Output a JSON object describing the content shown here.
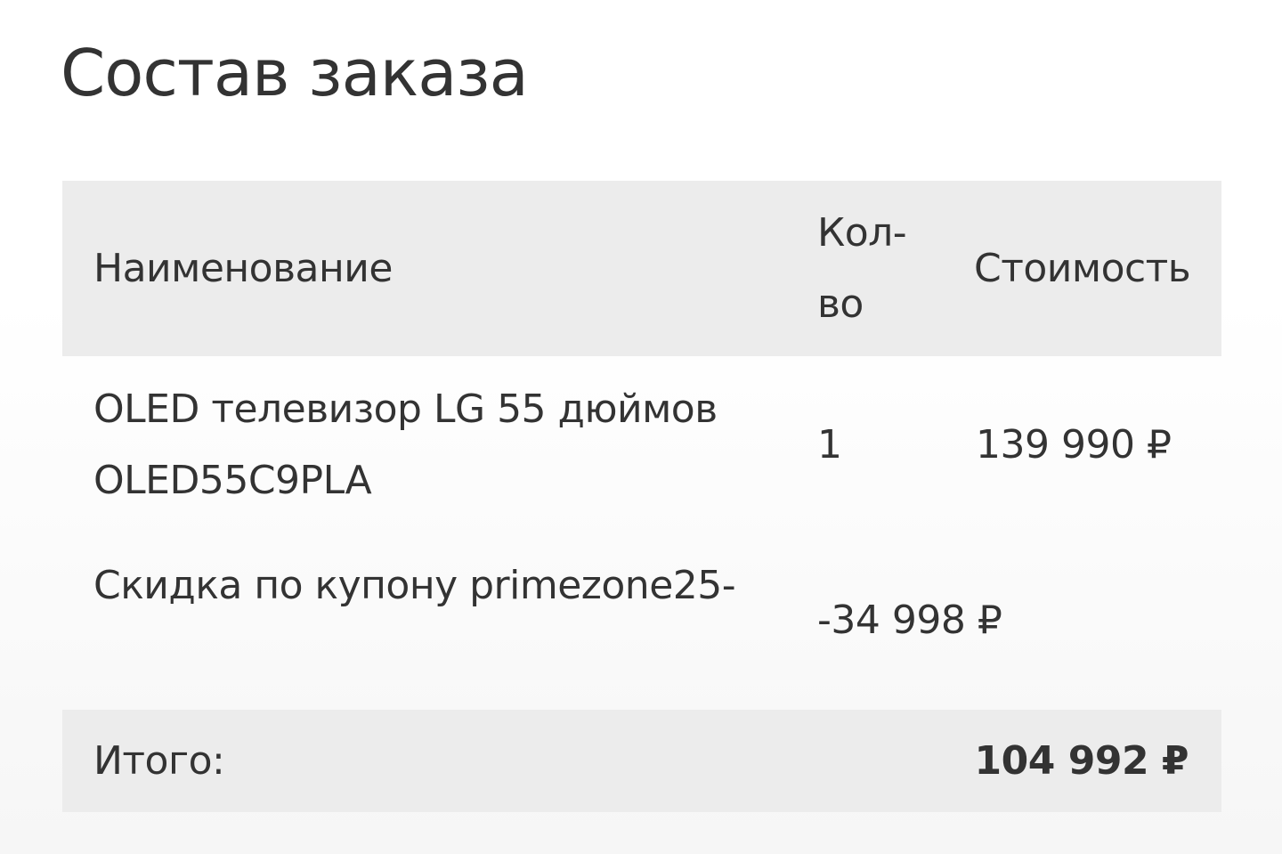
{
  "title": "Состав заказа",
  "table": {
    "headers": {
      "name": "Наименование",
      "qty_line1": "Кол-",
      "qty_line2": "во",
      "cost": "Стоимость"
    },
    "rows": [
      {
        "name_line1": "OLED телевизор LG 55 дюймов",
        "name_line2": "OLED55C9PLA",
        "qty": "1",
        "cost": "139 990 ₽"
      },
      {
        "name": "Скидка по купону primezone25-",
        "amount": "-34 998 ₽"
      }
    ],
    "total": {
      "label": "Итого:",
      "value": "104 992 ₽"
    }
  },
  "colors": {
    "text": "#333333",
    "header_bg": "#ececec"
  }
}
